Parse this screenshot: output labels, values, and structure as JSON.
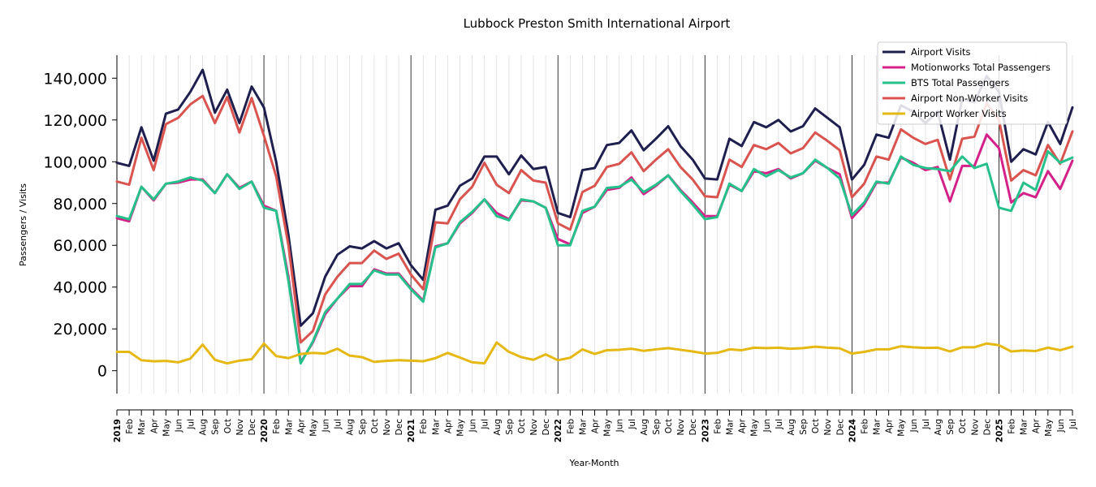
{
  "chart_data": {
    "type": "line",
    "title": "Lubbock Preston Smith International Airport",
    "xlabel": "Year-Month",
    "ylabel": "Passengers / Visits",
    "ylim": [
      -11000,
      151000
    ],
    "yticks": [
      0,
      20000,
      40000,
      60000,
      80000,
      100000,
      120000,
      140000
    ],
    "ytick_labels": [
      "0",
      "20,000",
      "40,000",
      "60,000",
      "80,000",
      "100,000",
      "120,000",
      "140,000"
    ],
    "grid": "vertical minor gridlines at each month; black vertical lines at each January",
    "legend_position": "top-right",
    "x": [
      "2019-01",
      "2019-02",
      "2019-03",
      "2019-04",
      "2019-05",
      "2019-06",
      "2019-07",
      "2019-08",
      "2019-09",
      "2019-10",
      "2019-11",
      "2019-12",
      "2020-01",
      "2020-02",
      "2020-03",
      "2020-04",
      "2020-05",
      "2020-06",
      "2020-07",
      "2020-08",
      "2020-09",
      "2020-10",
      "2020-11",
      "2020-12",
      "2021-01",
      "2021-02",
      "2021-03",
      "2021-04",
      "2021-05",
      "2021-06",
      "2021-07",
      "2021-08",
      "2021-09",
      "2021-10",
      "2021-11",
      "2021-12",
      "2022-01",
      "2022-02",
      "2022-03",
      "2022-04",
      "2022-05",
      "2022-06",
      "2022-07",
      "2022-08",
      "2022-09",
      "2022-10",
      "2022-11",
      "2022-12",
      "2023-01",
      "2023-02",
      "2023-03",
      "2023-04",
      "2023-05",
      "2023-06",
      "2023-07",
      "2023-08",
      "2023-09",
      "2023-10",
      "2023-11",
      "2023-12",
      "2024-01",
      "2024-02",
      "2024-03",
      "2024-04",
      "2024-05",
      "2024-06",
      "2024-07",
      "2024-08",
      "2024-09",
      "2024-10",
      "2024-11",
      "2024-12",
      "2025-01",
      "2025-02",
      "2025-03",
      "2025-04",
      "2025-05",
      "2025-06",
      "2025-07"
    ],
    "x_tick_labels": [
      "2019",
      "Feb",
      "Mar",
      "Apr",
      "May",
      "Jun",
      "Jul",
      "Aug",
      "Sep",
      "Oct",
      "Nov",
      "Dec",
      "2020",
      "Feb",
      "Mar",
      "Apr",
      "May",
      "Jun",
      "Jul",
      "Aug",
      "Sep",
      "Oct",
      "Nov",
      "Dec",
      "2021",
      "Feb",
      "Mar",
      "Apr",
      "May",
      "Jun",
      "Jul",
      "Aug",
      "Sep",
      "Oct",
      "Nov",
      "Dec",
      "2022",
      "Feb",
      "Mar",
      "Apr",
      "May",
      "Jun",
      "Jul",
      "Aug",
      "Sep",
      "Oct",
      "Nov",
      "Dec",
      "2023",
      "Feb",
      "Mar",
      "Apr",
      "May",
      "Jun",
      "Jul",
      "Aug",
      "Sep",
      "Oct",
      "Nov",
      "Dec",
      "2024",
      "Feb",
      "Mar",
      "Apr",
      "May",
      "Jun",
      "Jul",
      "Aug",
      "Sep",
      "Oct",
      "Nov",
      "Dec",
      "2025",
      "Feb",
      "Mar",
      "Apr",
      "May",
      "Jun",
      "Jul"
    ],
    "series": [
      {
        "name": "Airport Visits",
        "color": "#1f1f4f",
        "values": [
          99500,
          98000,
          116500,
          100500,
          123000,
          125000,
          133500,
          144000,
          123500,
          134500,
          118500,
          136000,
          126000,
          100000,
          65000,
          21500,
          27500,
          45000,
          55500,
          59500,
          58500,
          62000,
          58500,
          61000,
          50500,
          43500,
          77000,
          79000,
          88500,
          92000,
          102500,
          102500,
          94000,
          103000,
          96500,
          97500,
          75500,
          73500,
          96000,
          97000,
          108000,
          109000,
          115000,
          105500,
          111000,
          117000,
          107500,
          101000,
          92000,
          91500,
          111000,
          107500,
          119000,
          116500,
          120000,
          114500,
          117000,
          125500,
          121000,
          116500,
          91500,
          98500,
          113000,
          111500,
          127000,
          124000,
          118500,
          124000,
          101000,
          130000,
          128500,
          141000,
          133500,
          100000,
          106000,
          103500,
          119000,
          108500,
          126000
        ]
      },
      {
        "name": "Motionworks Total Passengers",
        "color": "#d4218a",
        "values": [
          73000,
          71500,
          88000,
          81500,
          89500,
          90000,
          91500,
          91500,
          85000,
          94000,
          87500,
          90500,
          79000,
          76500,
          45000,
          4000,
          13500,
          27000,
          34500,
          40500,
          40500,
          48500,
          46500,
          46500,
          39500,
          33500,
          59500,
          61000,
          70500,
          75500,
          82000,
          75500,
          72500,
          81500,
          81000,
          78000,
          63000,
          60500,
          75500,
          78500,
          86500,
          87500,
          92500,
          84500,
          88500,
          93500,
          86500,
          80500,
          74000,
          74000,
          89000,
          86000,
          95500,
          94500,
          96500,
          92000,
          94500,
          100500,
          97000,
          94000,
          73000,
          79500,
          90000,
          90000,
          102000,
          99500,
          96000,
          97500,
          81000,
          98000,
          98000,
          113000,
          106500,
          80500,
          85000,
          83000,
          95500,
          87000,
          100500
        ]
      },
      {
        "name": "BTS Total Passengers",
        "color": "#26c08a",
        "values": [
          74000,
          72500,
          88000,
          82000,
          89500,
          90500,
          92500,
          91000,
          85000,
          94000,
          87000,
          90500,
          78000,
          76500,
          43000,
          3500,
          14000,
          28000,
          34500,
          41500,
          41500,
          48000,
          46000,
          46000,
          39000,
          33000,
          59000,
          61000,
          71000,
          76000,
          82000,
          74000,
          72000,
          82000,
          81000,
          78000,
          60000,
          60000,
          76500,
          78500,
          87500,
          88000,
          91500,
          85500,
          89000,
          93500,
          86000,
          79500,
          72500,
          73500,
          89500,
          86000,
          96500,
          93000,
          96000,
          92500,
          94500,
          101000,
          97000,
          92000,
          74500,
          80500,
          90500,
          89500,
          102500,
          98500,
          97000,
          96500,
          95500,
          102500,
          97000,
          99000,
          78000,
          76500,
          90000,
          86500,
          105000,
          99500,
          102000
        ]
      },
      {
        "name": "Airport Non-Worker Visits",
        "color": "#d9534f",
        "values": [
          90500,
          89000,
          111500,
          96000,
          118000,
          121000,
          127500,
          131500,
          118500,
          131000,
          114000,
          130500,
          112500,
          93000,
          60000,
          13500,
          19000,
          36500,
          45000,
          51500,
          51500,
          57500,
          53500,
          56000,
          46000,
          39000,
          71000,
          70500,
          82000,
          88000,
          99500,
          89000,
          85000,
          96000,
          91000,
          90000,
          70500,
          67500,
          85500,
          88500,
          97500,
          99000,
          104500,
          95500,
          101000,
          106000,
          97500,
          91500,
          83500,
          83000,
          101000,
          97500,
          108000,
          106000,
          109000,
          104000,
          106500,
          114000,
          110000,
          105500,
          83000,
          89500,
          102500,
          101000,
          115500,
          111500,
          108500,
          110500,
          91500,
          111000,
          112000,
          128000,
          120000,
          91000,
          96000,
          93500,
          108000,
          99000,
          114500
        ]
      },
      {
        "name": "Airport Worker Visits",
        "color": "#e5b814",
        "values": [
          9000,
          9000,
          5000,
          4500,
          4700,
          4000,
          5800,
          12500,
          5200,
          3500,
          4800,
          5500,
          13000,
          7000,
          6000,
          8000,
          8500,
          8200,
          10500,
          7200,
          6500,
          4200,
          4700,
          5000,
          4800,
          4500,
          6000,
          8500,
          6300,
          4000,
          3500,
          13500,
          9000,
          6500,
          5200,
          7800,
          5000,
          6200,
          10200,
          8000,
          9800,
          10000,
          10500,
          9500,
          10200,
          10800,
          10000,
          9200,
          8200,
          8500,
          10200,
          9800,
          11000,
          10800,
          11000,
          10500,
          10800,
          11500,
          11000,
          10700,
          8200,
          9000,
          10200,
          10200,
          11700,
          11200,
          10900,
          11000,
          9200,
          11200,
          11200,
          13000,
          12200,
          9200,
          9700,
          9400,
          11000,
          9800,
          11500
        ]
      }
    ]
  }
}
